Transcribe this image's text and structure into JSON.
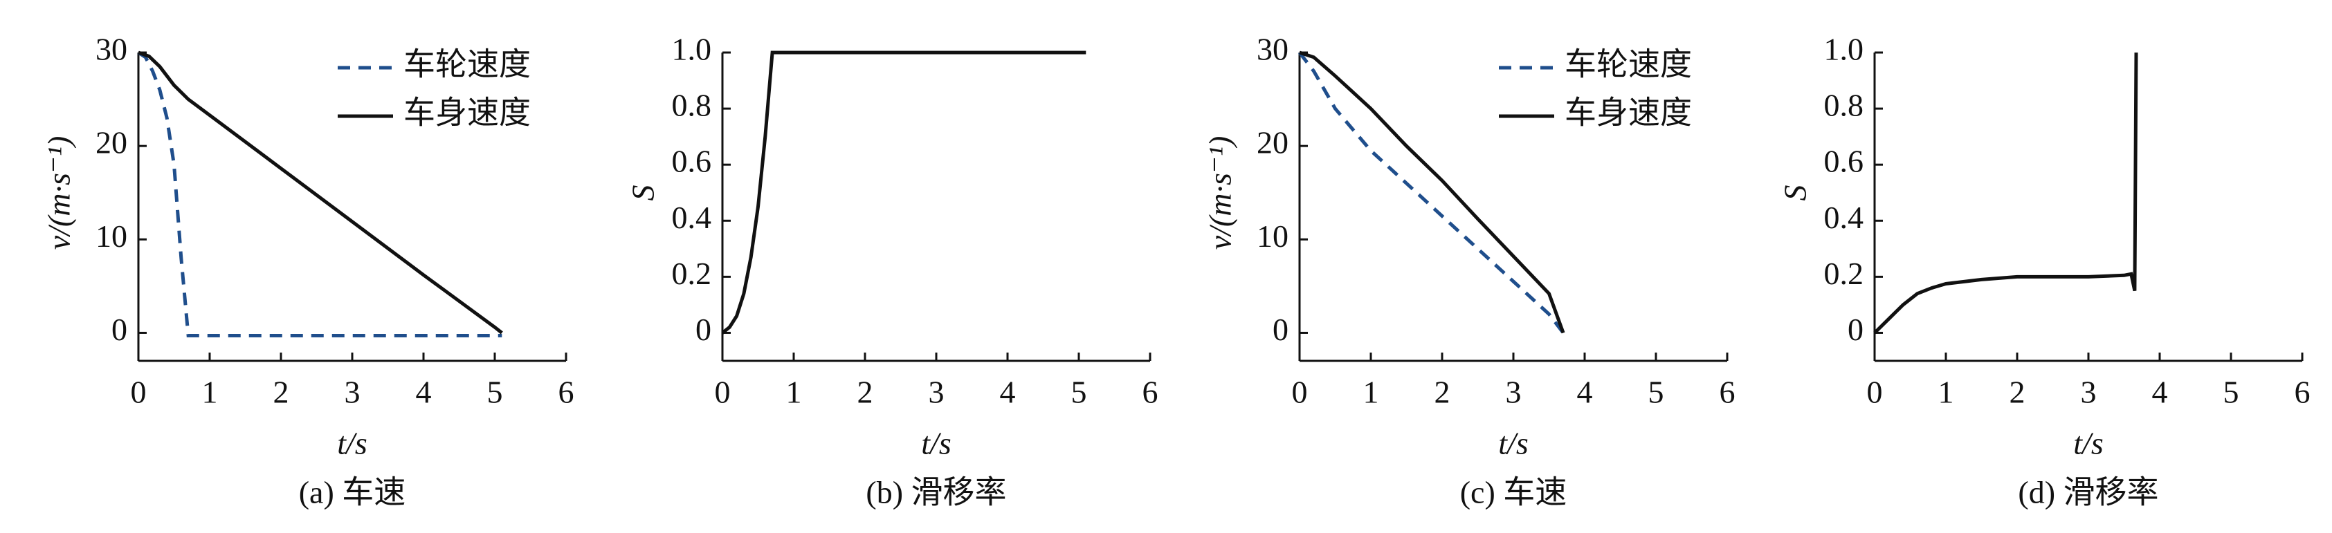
{
  "chart_data": [
    {
      "type": "line",
      "caption": "(a) 车速",
      "xlabel": "t/s",
      "ylabel": "v/(m·s⁻¹)",
      "xlim": [
        0,
        6
      ],
      "xticks": [
        0,
        1,
        2,
        3,
        4,
        5,
        6
      ],
      "ylim": [
        -3,
        30
      ],
      "yticks": [
        0,
        10,
        20,
        30
      ],
      "legend": "upper right",
      "series": [
        {
          "name": "车轮速度",
          "color": "#1f4e8c",
          "dash": true,
          "x": [
            0,
            0.1,
            0.2,
            0.3,
            0.4,
            0.5,
            0.6,
            0.7,
            5.1
          ],
          "values": [
            30,
            29.5,
            28,
            26,
            23,
            18,
            8,
            -0.3,
            -0.3
          ]
        },
        {
          "name": "车身速度",
          "color": "#111111",
          "dash": false,
          "x": [
            0,
            0.15,
            0.3,
            0.5,
            0.7,
            1,
            2,
            3,
            4,
            5,
            5.1
          ],
          "values": [
            30,
            29.6,
            28.5,
            26.5,
            25,
            23.3,
            17.6,
            11.9,
            6.2,
            0.6,
            0
          ]
        }
      ]
    },
    {
      "type": "line",
      "caption": "(b) 滑移率",
      "xlabel": "t/s",
      "ylabel": "S",
      "xlim": [
        0,
        6
      ],
      "xticks": [
        0,
        1,
        2,
        3,
        4,
        5,
        6
      ],
      "ylim": [
        -0.1,
        1
      ],
      "yticks": [
        0,
        0.2,
        0.4,
        0.6,
        0.8,
        {
          "value": 1,
          "label": "1.0"
        }
      ],
      "series": [
        {
          "color": "#111111",
          "dash": false,
          "x": [
            0,
            0.1,
            0.2,
            0.3,
            0.4,
            0.5,
            0.6,
            0.7,
            5.1
          ],
          "values": [
            0,
            0.02,
            0.06,
            0.14,
            0.27,
            0.45,
            0.7,
            1,
            1
          ]
        }
      ]
    },
    {
      "type": "line",
      "caption": "(c) 车速",
      "xlabel": "t/s",
      "ylabel": "v/(m·s⁻¹)",
      "xlim": [
        0,
        6
      ],
      "xticks": [
        0,
        1,
        2,
        3,
        4,
        5,
        6
      ],
      "ylim": [
        -3,
        30
      ],
      "yticks": [
        0,
        10,
        20,
        30
      ],
      "legend": "upper right",
      "series": [
        {
          "name": "车轮速度",
          "color": "#1f4e8c",
          "dash": true,
          "x": [
            0,
            0.2,
            0.5,
            1,
            1.5,
            2,
            2.5,
            3,
            3.5,
            3.7
          ],
          "values": [
            30,
            28,
            24,
            19.5,
            16,
            12.5,
            9,
            5.5,
            2,
            0
          ]
        },
        {
          "name": "车身速度",
          "color": "#111111",
          "dash": false,
          "x": [
            0,
            0.2,
            0.5,
            1,
            1.5,
            2,
            2.5,
            3,
            3.5,
            3.7
          ],
          "values": [
            30,
            29.5,
            27.5,
            24,
            20,
            16.3,
            12.2,
            8.2,
            4.2,
            0
          ]
        }
      ]
    },
    {
      "type": "line",
      "caption": "(d) 滑移率",
      "xlabel": "t/s",
      "ylabel": "S",
      "xlim": [
        0,
        6
      ],
      "xticks": [
        0,
        1,
        2,
        3,
        4,
        5,
        6
      ],
      "ylim": [
        -0.1,
        1
      ],
      "yticks": [
        0,
        0.2,
        0.4,
        0.6,
        0.8,
        {
          "value": 1,
          "label": "1.0"
        }
      ],
      "series": [
        {
          "color": "#111111",
          "dash": false,
          "x": [
            0,
            0.2,
            0.4,
            0.6,
            0.8,
            1,
            1.5,
            2,
            2.5,
            3,
            3.5,
            3.6,
            3.65,
            3.67
          ],
          "values": [
            0,
            0.05,
            0.1,
            0.14,
            0.16,
            0.175,
            0.19,
            0.2,
            0.2,
            0.2,
            0.205,
            0.21,
            0.15,
            1
          ]
        }
      ]
    }
  ]
}
